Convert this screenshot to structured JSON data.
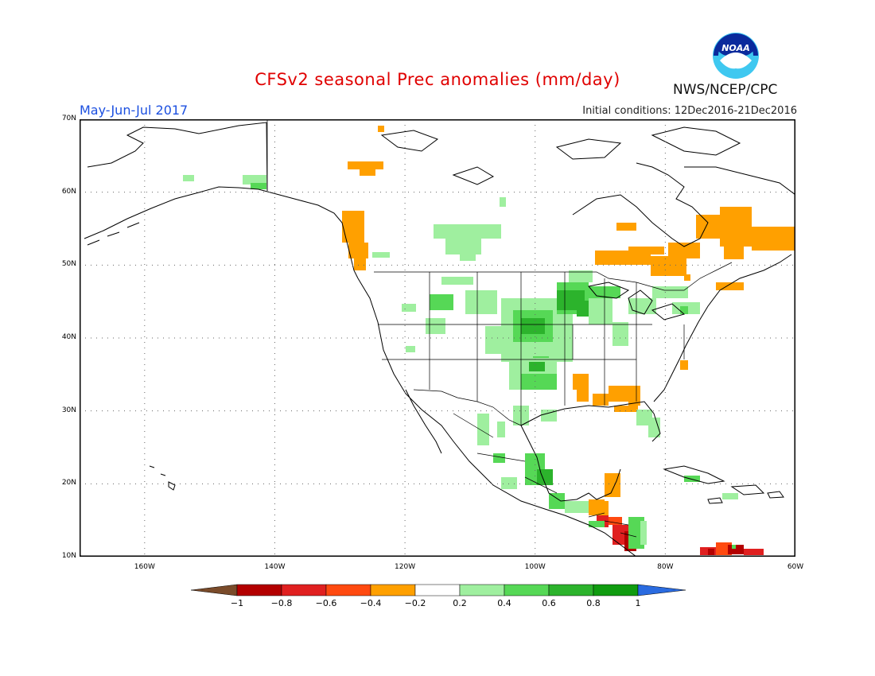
{
  "header": {
    "title": "CFSv2 seasonal Prec anomalies (mm/day)",
    "season": "May-Jun-Jul 2017",
    "initial_conditions": "Initial conditions: 12Dec2016-21Dec2016",
    "agency": "NWS/NCEP/CPC",
    "logo_text": "NOAA"
  },
  "map": {
    "lat_labels": [
      "70N",
      "60N",
      "50N",
      "40N",
      "30N",
      "20N",
      "10N"
    ],
    "lon_labels": [
      "160W",
      "140W",
      "120W",
      "100W",
      "80W",
      "60W"
    ],
    "lat_range": [
      10,
      70
    ],
    "lon_range": [
      -170,
      -60
    ],
    "grid": "dotted",
    "projection": "lat-lon"
  },
  "colorbar": {
    "ticks": [
      "-1",
      "-0.8",
      "-0.6",
      "-0.4",
      "-0.2",
      "0.2",
      "0.4",
      "0.6",
      "0.8",
      "1"
    ],
    "colors": {
      "below_-1": "#7a4b2a",
      "-1_-0.8": "#b30000",
      "-0.8_-0.6": "#e02020",
      "-0.6_-0.4": "#ff4a10",
      "-0.4_-0.2": "#ffa000",
      "-0.2_0.2": "#ffffff",
      "0.2_0.4": "#9fef9f",
      "0.4_0.6": "#56d856",
      "0.6_0.8": "#2cb32c",
      "0.8_1": "#109c10",
      "above_1": "#2a6be0"
    }
  }
}
